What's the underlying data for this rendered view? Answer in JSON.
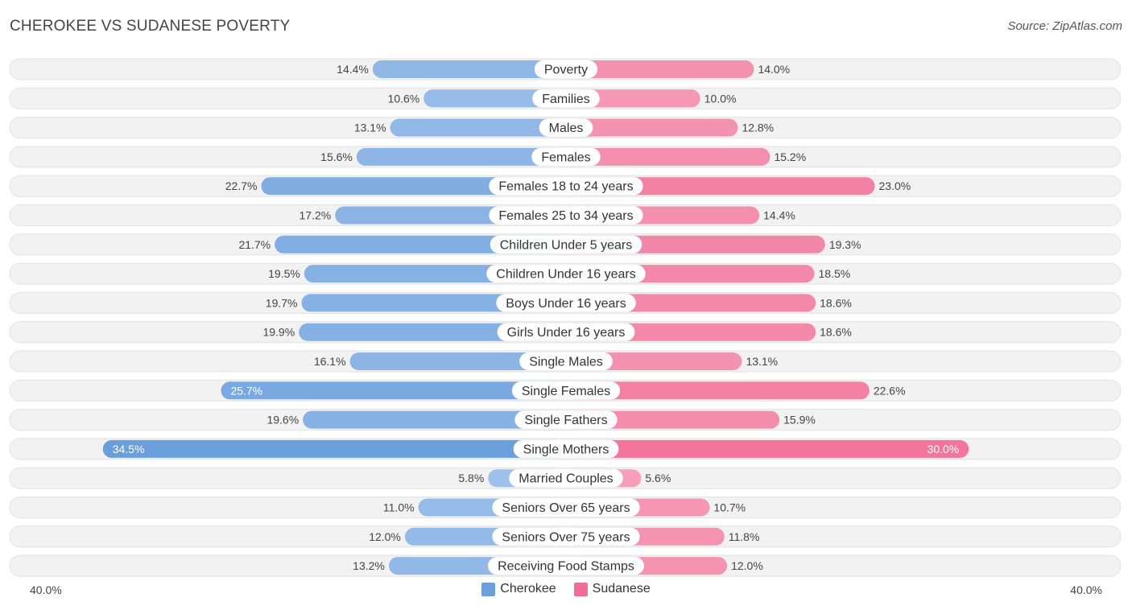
{
  "header": {
    "title": "CHEROKEE VS SUDANESE POVERTY",
    "source": "Source: ZipAtlas.com"
  },
  "colors": {
    "left_strong": "#6a9fdc",
    "left_light": "#a9c8ee",
    "right_strong": "#f06d96",
    "right_light": "#f7a8c1"
  },
  "chart_data": {
    "type": "bar",
    "orientation": "horizontal-diverging",
    "title": "CHEROKEE VS SUDANESE POVERTY",
    "axis_max": 40.0,
    "axis_left_label": "40.0%",
    "axis_right_label": "40.0%",
    "legend_position": "bottom-center",
    "categories": [
      "Poverty",
      "Families",
      "Males",
      "Females",
      "Females 18 to 24 years",
      "Females 25 to 34 years",
      "Children Under 5 years",
      "Children Under 16 years",
      "Boys Under 16 years",
      "Girls Under 16 years",
      "Single Males",
      "Single Females",
      "Single Fathers",
      "Single Mothers",
      "Married Couples",
      "Seniors Over 65 years",
      "Seniors Over 75 years",
      "Receiving Food Stamps"
    ],
    "series": [
      {
        "name": "Cherokee",
        "values": [
          14.4,
          10.6,
          13.1,
          15.6,
          22.7,
          17.2,
          21.7,
          19.5,
          19.7,
          19.9,
          16.1,
          25.7,
          19.6,
          34.5,
          5.8,
          11.0,
          12.0,
          13.2
        ],
        "labels": [
          "14.4%",
          "10.6%",
          "13.1%",
          "15.6%",
          "22.7%",
          "17.2%",
          "21.7%",
          "19.5%",
          "19.7%",
          "19.9%",
          "16.1%",
          "25.7%",
          "19.6%",
          "34.5%",
          "5.8%",
          "11.0%",
          "12.0%",
          "13.2%"
        ]
      },
      {
        "name": "Sudanese",
        "values": [
          14.0,
          10.0,
          12.8,
          15.2,
          23.0,
          14.4,
          19.3,
          18.5,
          18.6,
          18.6,
          13.1,
          22.6,
          15.9,
          30.0,
          5.6,
          10.7,
          11.8,
          12.0
        ],
        "labels": [
          "14.0%",
          "10.0%",
          "12.8%",
          "15.2%",
          "23.0%",
          "14.4%",
          "19.3%",
          "18.5%",
          "18.6%",
          "18.6%",
          "13.1%",
          "22.6%",
          "15.9%",
          "30.0%",
          "5.6%",
          "10.7%",
          "11.8%",
          "12.0%"
        ]
      }
    ]
  },
  "legend": {
    "left": "Cherokee",
    "right": "Sudanese"
  }
}
